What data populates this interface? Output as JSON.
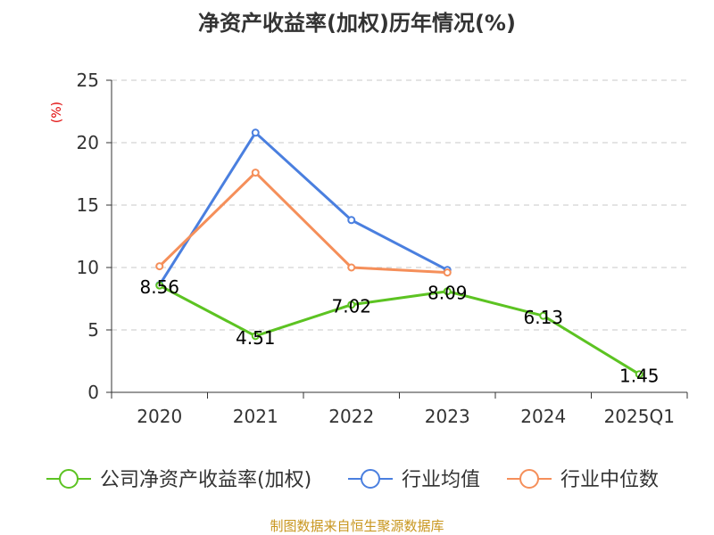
{
  "chart_data": {
    "type": "line",
    "title": "净资产收益率(加权)历年情况(%)",
    "xlabel": "",
    "ylabel": "(%)",
    "categories": [
      "2020",
      "2021",
      "2022",
      "2023",
      "2024",
      "2025Q1"
    ],
    "ylim": [
      0,
      25
    ],
    "yticks": [
      0,
      5,
      10,
      15,
      20,
      25
    ],
    "grid": true,
    "legend_position": "bottom",
    "series": [
      {
        "name": "公司净资产收益率(加权)",
        "color": "#5cc322",
        "values": [
          8.56,
          4.51,
          7.02,
          8.09,
          6.13,
          1.45
        ],
        "labels": [
          "8.56",
          "4.51",
          "7.02",
          "8.09",
          "6.13",
          "1.45"
        ]
      },
      {
        "name": "行业均值",
        "color": "#4a7fdf",
        "values": [
          8.6,
          20.8,
          13.8,
          9.8,
          null,
          null
        ]
      },
      {
        "name": "行业中位数",
        "color": "#f58f5a",
        "values": [
          10.1,
          17.6,
          10.0,
          9.6,
          null,
          null
        ]
      }
    ]
  },
  "footer": "制图数据来自恒生聚源数据库"
}
